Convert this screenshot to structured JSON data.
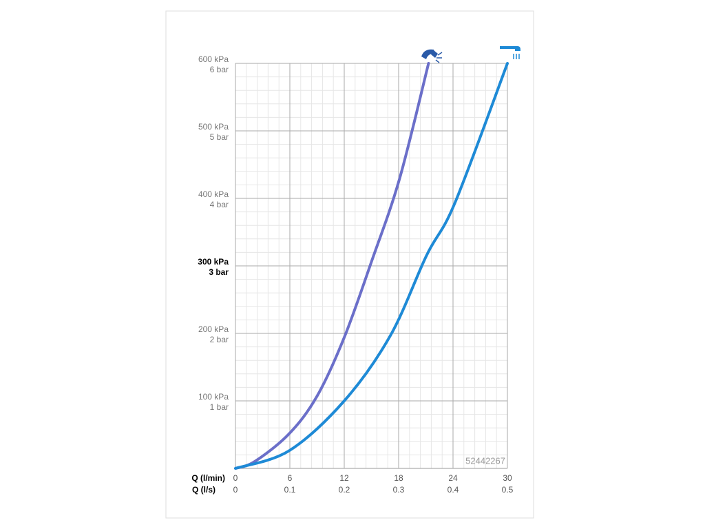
{
  "chart_data": {
    "type": "line",
    "x_label": "Q (l/min)",
    "x2_label": "Q (l/s)",
    "annotation": "52442267",
    "xlim": [
      0,
      30
    ],
    "xticks": [
      0,
      6,
      12,
      18,
      24,
      30
    ],
    "x2lim": [
      0,
      0.5
    ],
    "x2ticks": [
      0,
      0.1,
      0.2,
      0.3,
      0.4,
      0.5
    ],
    "ylim": [
      0,
      600
    ],
    "yticks": [
      {
        "value": 100,
        "label": "100 kPa"
      },
      {
        "value": 200,
        "label": "200 kPa"
      },
      {
        "value": 300,
        "label": "300 kPa"
      },
      {
        "value": 400,
        "label": "400 kPa"
      },
      {
        "value": 500,
        "label": "500 kPa"
      },
      {
        "value": 600,
        "label": "600 kPa"
      }
    ],
    "y2lim": [
      0,
      6
    ],
    "y2ticks": [
      {
        "value": 1,
        "label": "1 bar"
      },
      {
        "value": 2,
        "label": "2 bar"
      },
      {
        "value": 3,
        "label": "3 bar"
      },
      {
        "value": 4,
        "label": "4 bar"
      },
      {
        "value": 5,
        "label": "5 bar"
      },
      {
        "value": 6,
        "label": "6 bar"
      }
    ],
    "bold_yticks": [
      300
    ],
    "grid": true,
    "minor_grid_divisions": 5,
    "series": [
      {
        "color": "#6b6fc9",
        "x": [
          0,
          2.1,
          5.9,
          9.0,
          12.0,
          15.0,
          18.1,
          21.3
        ],
        "values": [
          0,
          10,
          51,
          107,
          194,
          306,
          429,
          600
        ]
      },
      {
        "color": "#1e8ad6",
        "x": [
          0,
          5.9,
          12.0,
          17.1,
          21.1,
          24.2,
          30
        ],
        "values": [
          0,
          26,
          100,
          197,
          316,
          393,
          600
        ]
      }
    ]
  }
}
